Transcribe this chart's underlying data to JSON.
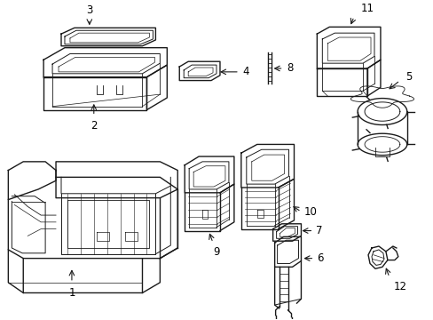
{
  "background_color": "#ffffff",
  "line_color": "#1a1a1a",
  "line_width": 1.0,
  "label_fontsize": 8.5,
  "fig_width": 4.89,
  "fig_height": 3.6,
  "dpi": 100
}
